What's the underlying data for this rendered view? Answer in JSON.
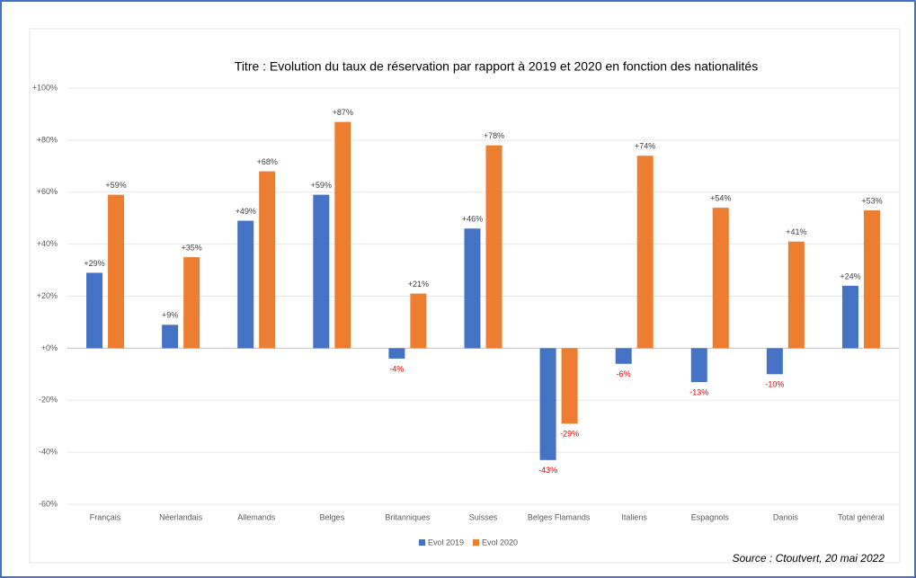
{
  "chart_data": {
    "type": "bar",
    "title": "Titre : Evolution du taux de réservation par rapport à 2019 et 2020 en fonction des nationalités",
    "source": "Source : Ctoutvert, 20 mai 2022",
    "categories": [
      "Français",
      "Néerlandais",
      "Allemands",
      "Belges",
      "Britanniques",
      "Suisses",
      "Belges Flamands",
      "Italiens",
      "Espagnols",
      "Danois",
      "Total général"
    ],
    "series": [
      {
        "name": "Evol 2019",
        "color": "#4472c4",
        "values": [
          29,
          9,
          49,
          59,
          -4,
          46,
          -43,
          -6,
          -13,
          -10,
          24
        ],
        "value_labels": [
          "+29%",
          "+9%",
          "+49%",
          "+59%",
          "-4%",
          "+46%",
          "-43%",
          "-6%",
          "-13%",
          "-10%",
          "+24%"
        ]
      },
      {
        "name": "Evol 2020",
        "color": "#ed7d31",
        "values": [
          59,
          35,
          68,
          87,
          21,
          78,
          -29,
          74,
          54,
          41,
          53
        ],
        "value_labels": [
          "+59%",
          "+35%",
          "+68%",
          "+87%",
          "+21%",
          "+78%",
          "-29%",
          "+74%",
          "+54%",
          "+41%",
          "+53%"
        ]
      }
    ],
    "ylim": [
      -60,
      100
    ],
    "yticks": [
      {
        "value": -60,
        "label": "-60%"
      },
      {
        "value": -40,
        "label": "-40%"
      },
      {
        "value": -20,
        "label": "-20%"
      },
      {
        "value": 0,
        "label": "+0%"
      },
      {
        "value": 20,
        "label": "+20%"
      },
      {
        "value": 40,
        "label": "+40%"
      },
      {
        "value": 60,
        "label": "+60%"
      },
      {
        "value": 80,
        "label": "+80%"
      },
      {
        "value": 100,
        "label": "+100%"
      }
    ],
    "grid": true,
    "legend": "bottom"
  }
}
